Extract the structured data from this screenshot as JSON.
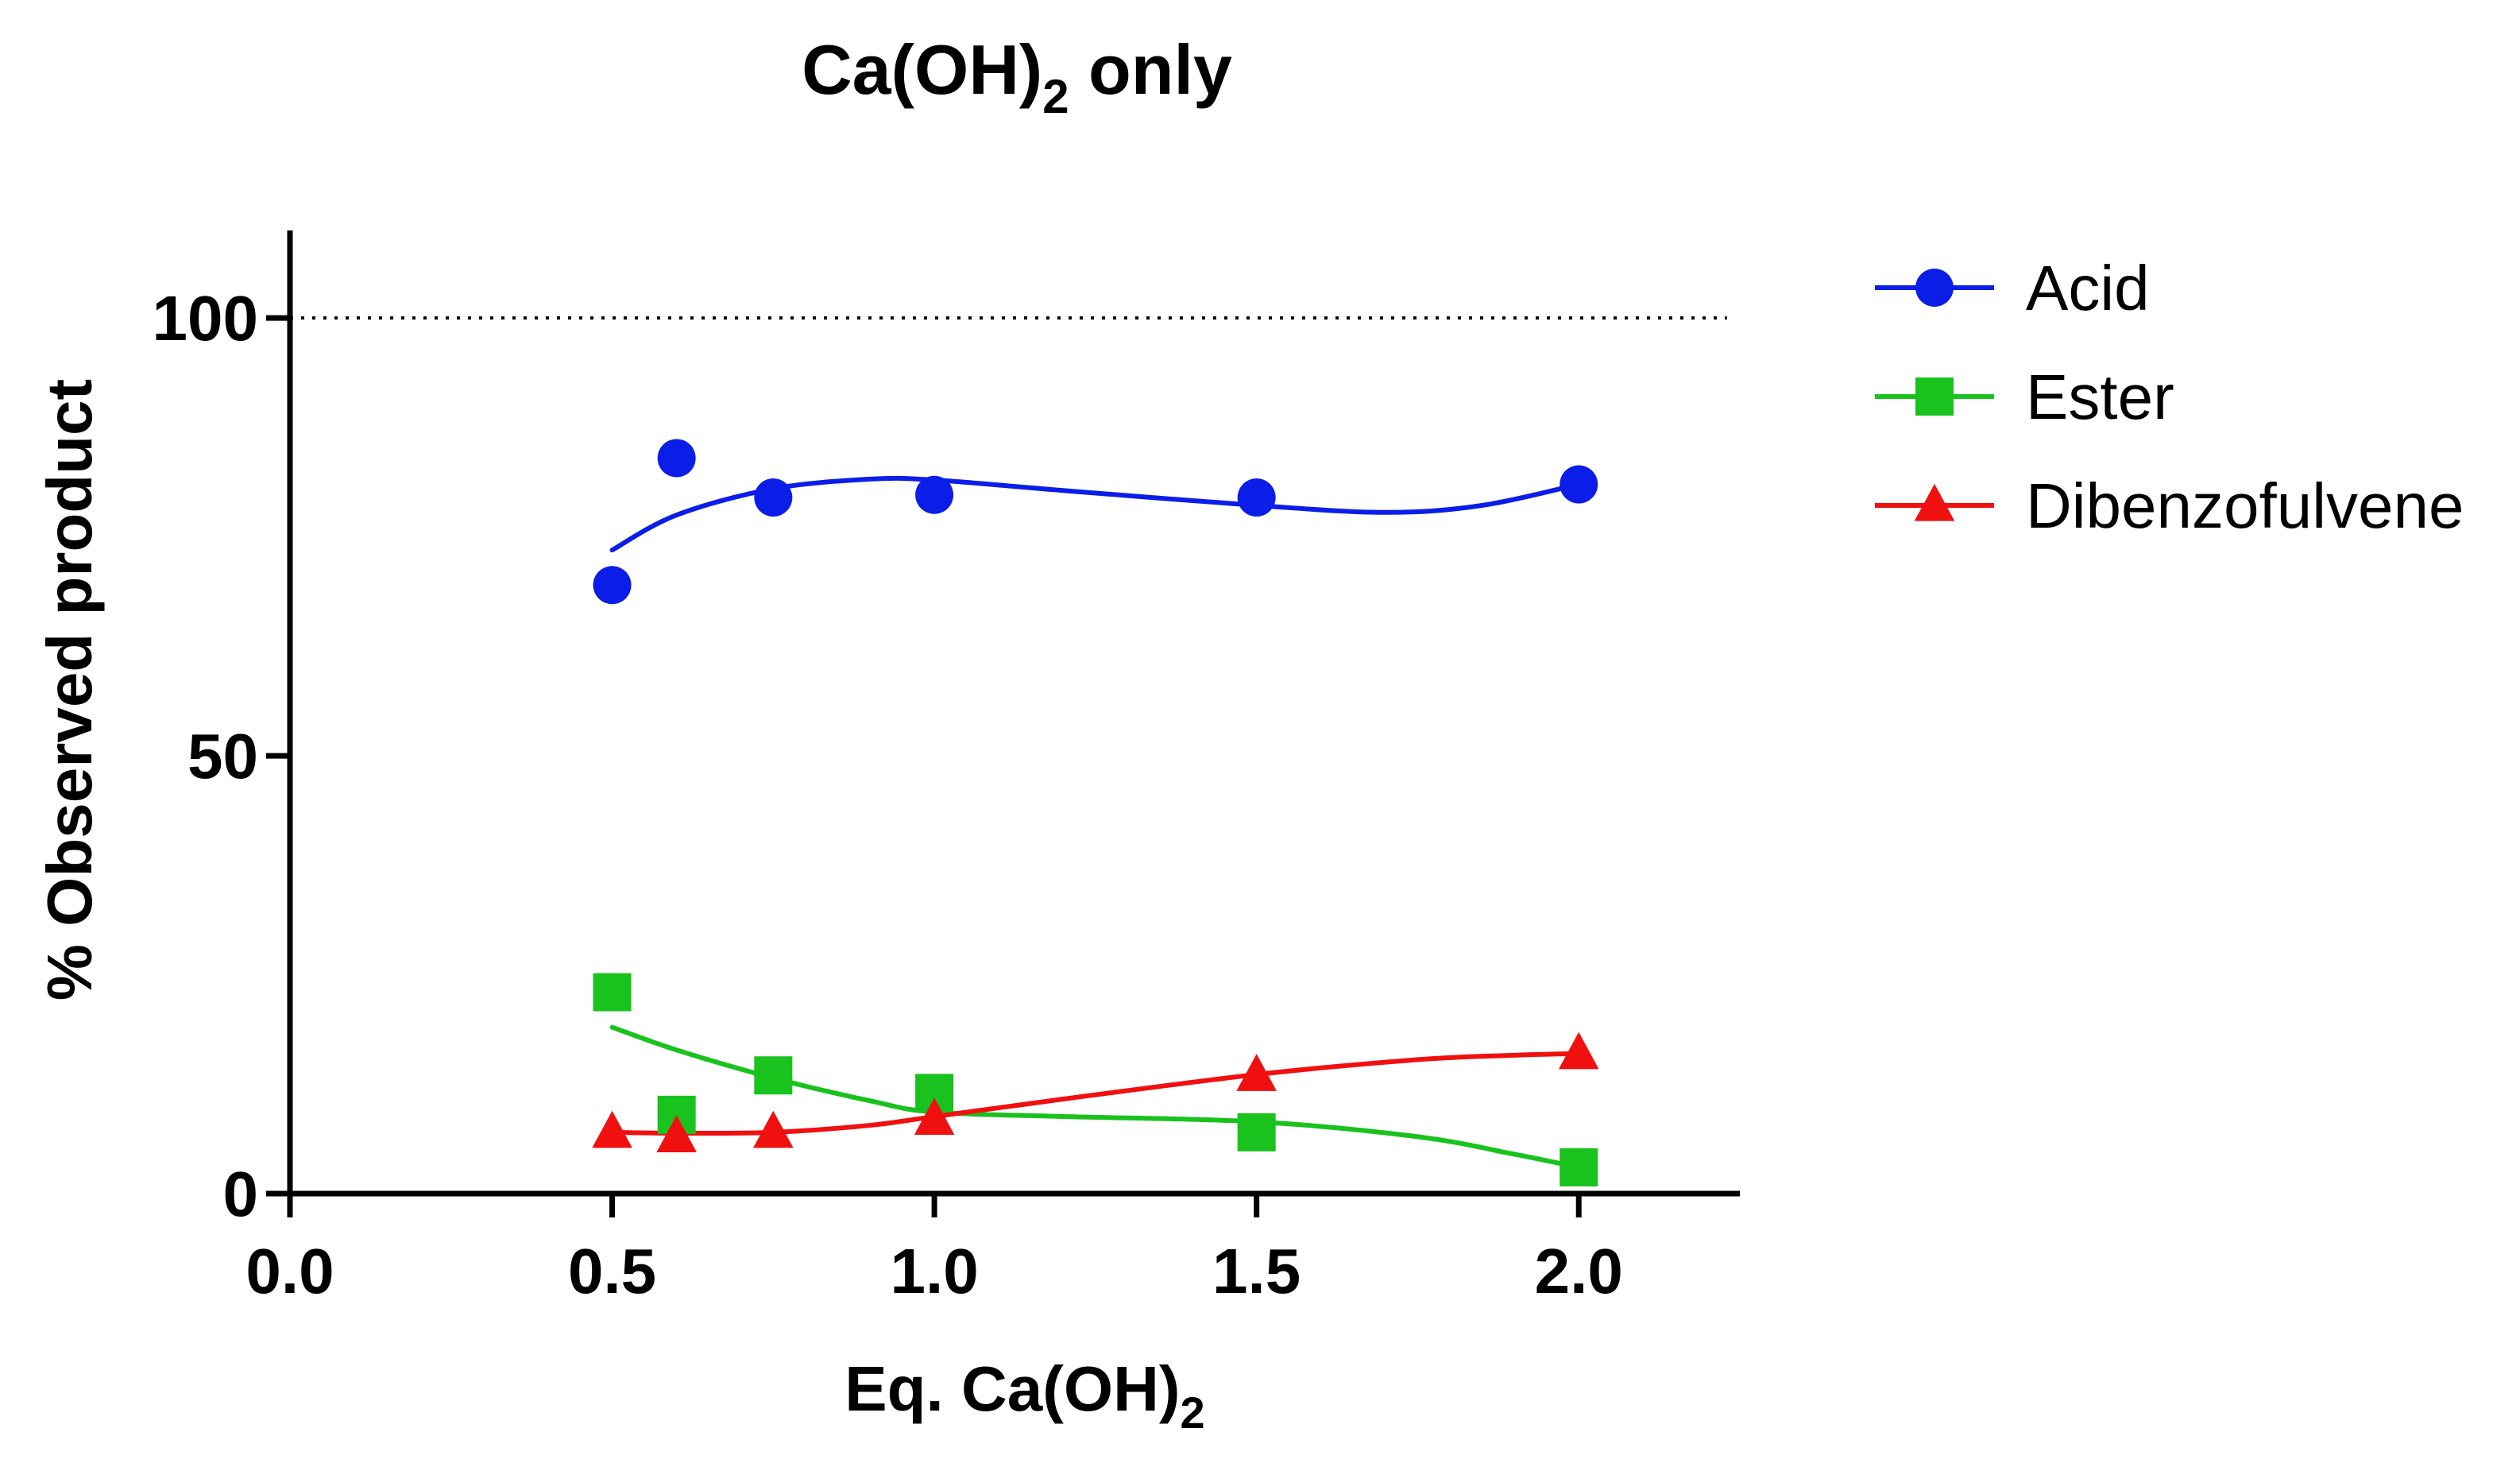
{
  "chart_data": {
    "type": "scatter",
    "title": {
      "main": "Ca(OH)",
      "sub": "2",
      "suffix": " only"
    },
    "xlabel": {
      "main": "Eq.  Ca(OH)",
      "sub": "2"
    },
    "ylabel": "% Observed product",
    "xlim": [
      0,
      2.25
    ],
    "ylim": [
      0,
      110
    ],
    "xticks": [
      "0.0",
      "0.5",
      "1.0",
      "1.5",
      "2.0"
    ],
    "xtick_values": [
      0,
      0.5,
      1.0,
      1.5,
      2.0
    ],
    "yticks": [
      "0",
      "50",
      "100"
    ],
    "ytick_values": [
      0,
      50,
      100
    ],
    "reference_line": {
      "y": 100,
      "style": "dotted"
    },
    "legend_position": "top-right",
    "series": [
      {
        "name": "Acid",
        "marker": "circle",
        "color": "#0a1ee8",
        "x": [
          0.5,
          0.6,
          0.75,
          1.0,
          1.5,
          2.0
        ],
        "y": [
          69.5,
          84,
          79.5,
          79.8,
          79.5,
          81
        ],
        "fit_x": [
          0.5,
          0.6,
          0.75,
          0.9,
          1.0,
          1.2,
          1.5,
          1.7,
          1.85,
          2.0
        ],
        "fit_y": [
          73.5,
          77.5,
          80.5,
          81.6,
          81.5,
          80.3,
          78.6,
          77.8,
          78.6,
          81.0
        ]
      },
      {
        "name": "Ester",
        "marker": "square",
        "color": "#19c21d",
        "x": [
          0.5,
          0.6,
          0.75,
          1.0,
          1.5,
          2.0
        ],
        "y": [
          23,
          9,
          13.5,
          11.5,
          7,
          3
        ],
        "fit_x": [
          0.5,
          0.6,
          0.75,
          0.9,
          1.0,
          1.2,
          1.5,
          1.75,
          1.9,
          2.0
        ],
        "fit_y": [
          19,
          16.4,
          13.2,
          10.6,
          9.3,
          8.8,
          8.2,
          6.5,
          4.5,
          3.0
        ]
      },
      {
        "name": "Dibenzofulvene",
        "marker": "triangle",
        "color": "#f01010",
        "x": [
          0.5,
          0.6,
          0.75,
          1.0,
          1.5,
          2.0
        ],
        "y": [
          7,
          6.5,
          7,
          8.5,
          13.5,
          16
        ],
        "fit_x": [
          0.5,
          0.6,
          0.75,
          0.9,
          1.0,
          1.2,
          1.5,
          1.75,
          1.9,
          2.0
        ],
        "fit_y": [
          7.0,
          6.9,
          7.0,
          7.8,
          8.8,
          10.8,
          13.6,
          15.3,
          15.8,
          16.0
        ]
      }
    ]
  }
}
